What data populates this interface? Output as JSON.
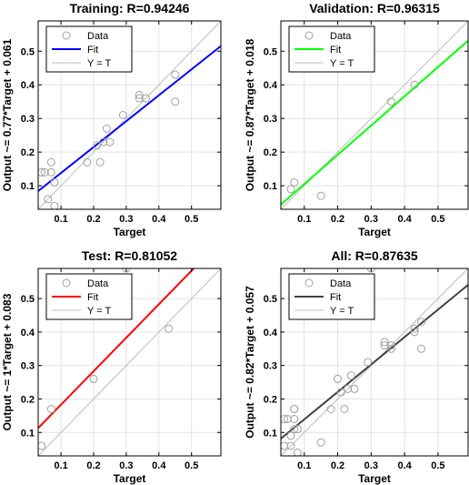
{
  "chart_data": [
    {
      "type": "scatter",
      "title": "Training: R=0.94246",
      "xlabel": "Target",
      "ylabel": "Output ~= 0.77*Target + 0.061",
      "xlim": [
        0.03,
        0.59
      ],
      "ylim": [
        0.03,
        0.59
      ],
      "xticks": [
        "0.1",
        "0.2",
        "0.3",
        "0.4",
        "0.5"
      ],
      "yticks": [
        "0.1",
        "0.2",
        "0.3",
        "0.4",
        "0.5"
      ],
      "legend_position": "top-left",
      "legend": [
        "Data",
        "Fit",
        "Y = T"
      ],
      "fit": {
        "slope": 0.77,
        "intercept": 0.061,
        "color": "#0000ff"
      },
      "points": [
        [
          0.04,
          0.14
        ],
        [
          0.05,
          0.14
        ],
        [
          0.06,
          0.06
        ],
        [
          0.07,
          0.17
        ],
        [
          0.07,
          0.14
        ],
        [
          0.08,
          0.11
        ],
        [
          0.08,
          0.04
        ],
        [
          0.18,
          0.17
        ],
        [
          0.21,
          0.22
        ],
        [
          0.22,
          0.17
        ],
        [
          0.23,
          0.23
        ],
        [
          0.24,
          0.27
        ],
        [
          0.25,
          0.23
        ],
        [
          0.29,
          0.31
        ],
        [
          0.34,
          0.36
        ],
        [
          0.34,
          0.37
        ],
        [
          0.36,
          0.36
        ],
        [
          0.45,
          0.43
        ],
        [
          0.45,
          0.35
        ]
      ]
    },
    {
      "type": "scatter",
      "title": "Validation: R=0.96315",
      "xlabel": "Target",
      "ylabel": "Output ~= 0.87*Target + 0.018",
      "xlim": [
        0.03,
        0.59
      ],
      "ylim": [
        0.03,
        0.59
      ],
      "xticks": [
        "0.1",
        "0.2",
        "0.3",
        "0.4",
        "0.5"
      ],
      "yticks": [
        "0.1",
        "0.2",
        "0.3",
        "0.4",
        "0.5"
      ],
      "legend_position": "top-left",
      "legend": [
        "Data",
        "Fit",
        "Y = T"
      ],
      "fit": {
        "slope": 0.87,
        "intercept": 0.018,
        "color": "#00ff00"
      },
      "points": [
        [
          0.06,
          0.09
        ],
        [
          0.07,
          0.11
        ],
        [
          0.15,
          0.07
        ],
        [
          0.36,
          0.35
        ],
        [
          0.43,
          0.4
        ]
      ]
    },
    {
      "type": "scatter",
      "title": "Test: R=0.81052",
      "xlabel": "Target",
      "ylabel": "Output ~= 1*Target + 0.083",
      "xlim": [
        0.03,
        0.59
      ],
      "ylim": [
        0.03,
        0.59
      ],
      "xticks": [
        "0.1",
        "0.2",
        "0.3",
        "0.4",
        "0.5"
      ],
      "yticks": [
        "0.1",
        "0.2",
        "0.3",
        "0.4",
        "0.5"
      ],
      "legend_position": "top-left",
      "legend": [
        "Data",
        "Fit",
        "Y = T"
      ],
      "fit": {
        "slope": 1.0,
        "intercept": 0.083,
        "color": "#ff0000"
      },
      "points": [
        [
          0.04,
          0.06
        ],
        [
          0.07,
          0.17
        ],
        [
          0.2,
          0.26
        ],
        [
          0.3,
          0.59
        ],
        [
          0.43,
          0.41
        ]
      ]
    },
    {
      "type": "scatter",
      "title": "All: R=0.87635",
      "xlabel": "Target",
      "ylabel": "Output ~= 0.82*Target + 0.057",
      "xlim": [
        0.03,
        0.59
      ],
      "ylim": [
        0.03,
        0.59
      ],
      "xticks": [
        "0.1",
        "0.2",
        "0.3",
        "0.4",
        "0.5"
      ],
      "yticks": [
        "0.1",
        "0.2",
        "0.3",
        "0.4",
        "0.5"
      ],
      "legend_position": "top-left",
      "legend": [
        "Data",
        "Fit",
        "Y = T"
      ],
      "fit": {
        "slope": 0.82,
        "intercept": 0.057,
        "color": "#404040"
      },
      "points": [
        [
          0.04,
          0.14
        ],
        [
          0.05,
          0.14
        ],
        [
          0.06,
          0.06
        ],
        [
          0.07,
          0.17
        ],
        [
          0.07,
          0.14
        ],
        [
          0.08,
          0.11
        ],
        [
          0.08,
          0.04
        ],
        [
          0.18,
          0.17
        ],
        [
          0.21,
          0.22
        ],
        [
          0.22,
          0.17
        ],
        [
          0.23,
          0.23
        ],
        [
          0.24,
          0.27
        ],
        [
          0.25,
          0.23
        ],
        [
          0.29,
          0.31
        ],
        [
          0.34,
          0.36
        ],
        [
          0.34,
          0.37
        ],
        [
          0.36,
          0.36
        ],
        [
          0.45,
          0.43
        ],
        [
          0.45,
          0.35
        ],
        [
          0.06,
          0.09
        ],
        [
          0.07,
          0.11
        ],
        [
          0.15,
          0.07
        ],
        [
          0.36,
          0.35
        ],
        [
          0.43,
          0.4
        ],
        [
          0.04,
          0.06
        ],
        [
          0.07,
          0.17
        ],
        [
          0.2,
          0.26
        ],
        [
          0.3,
          0.59
        ],
        [
          0.43,
          0.41
        ]
      ]
    }
  ]
}
